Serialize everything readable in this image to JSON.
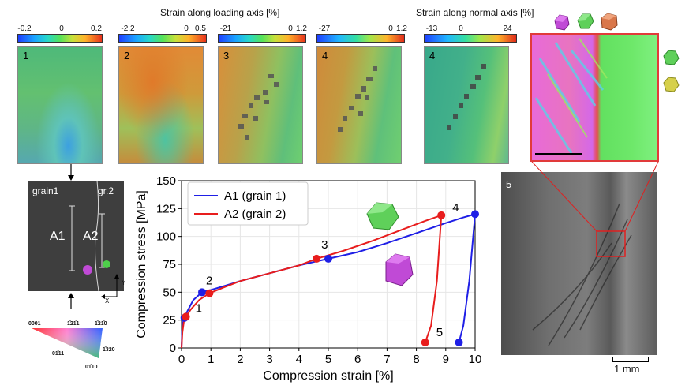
{
  "headers": {
    "loading": "Strain along loading axis [%]",
    "normal": "Strain along normal axis [%]"
  },
  "colorbars": {
    "cb1": [
      "-0.2",
      "0",
      "0.2"
    ],
    "cb2": [
      "-2.2",
      "0",
      "0.5"
    ],
    "cb3": [
      "-21",
      "0",
      "1.2"
    ],
    "cb4": [
      "-27",
      "0",
      "1.2"
    ],
    "cb5": [
      "-13",
      "0",
      "24"
    ]
  },
  "panels": {
    "p1": "1",
    "p2": "2",
    "p3": "3",
    "p4": "4",
    "p5": "4",
    "photo": "5"
  },
  "grain_image": {
    "grain1": "grain1",
    "grain2": "gr.2",
    "a1": "A1",
    "a2": "A2",
    "axis_y": "Y",
    "axis_x": "X"
  },
  "ipf": {
    "l0001": "0001",
    "l1211": "1̄21̄1",
    "l1210": "1̄21̄0",
    "l0111": "01̄11",
    "l1320": "1̄320",
    "l0110": "01̄10"
  },
  "scalebar": "1 mm",
  "chart_data": {
    "type": "line",
    "xlabel": "Compression strain [%]",
    "ylabel": "Compression stress [MPa]",
    "xlim": [
      0,
      10
    ],
    "ylim": [
      0,
      150
    ],
    "xticks": [
      "0",
      "1",
      "2",
      "3",
      "4",
      "5",
      "6",
      "7",
      "8",
      "9",
      "10"
    ],
    "yticks": [
      "0",
      "25",
      "50",
      "75",
      "100",
      "125",
      "150"
    ],
    "legend_position": "top-left",
    "series": [
      {
        "name": "A1 (grain 1)",
        "color": "#1f1fe6",
        "x": [
          0,
          0.02,
          0.05,
          0.1,
          0.2,
          0.4,
          0.7,
          1.0,
          1.5,
          2.0,
          3.0,
          4.0,
          5.0,
          6.0,
          7.0,
          8.0,
          9.0,
          9.6,
          10.0,
          9.8,
          9.6,
          9.45
        ],
        "y": [
          0,
          15,
          23,
          27,
          33,
          43,
          50,
          52,
          56,
          60,
          67,
          74,
          80,
          86,
          94,
          103,
          112,
          117,
          120,
          60,
          20,
          5
        ],
        "markers": [
          {
            "label": "1",
            "x": 0.1,
            "y": 27
          },
          {
            "label": "2",
            "x": 0.7,
            "y": 50
          },
          {
            "label": "3",
            "x": 5.0,
            "y": 80
          },
          {
            "label": "4",
            "x": 10.0,
            "y": 120
          },
          {
            "label": "5",
            "x": 9.45,
            "y": 5
          }
        ]
      },
      {
        "name": "A2 (grain 2)",
        "color": "#e81d1d",
        "x": [
          0,
          0.03,
          0.08,
          0.15,
          0.3,
          0.6,
          0.95,
          1.5,
          2.0,
          3.0,
          4.0,
          4.6,
          5.5,
          6.5,
          7.5,
          8.3,
          8.85,
          8.7,
          8.5,
          8.3
        ],
        "y": [
          0,
          14,
          24,
          28,
          34,
          43,
          49,
          55,
          60,
          67,
          74,
          80,
          87,
          96,
          106,
          114,
          119,
          60,
          20,
          5
        ],
        "markers": [
          {
            "label": "1",
            "x": 0.15,
            "y": 28
          },
          {
            "label": "2",
            "x": 0.95,
            "y": 49
          },
          {
            "label": "3",
            "x": 4.6,
            "y": 80
          },
          {
            "label": "4",
            "x": 8.85,
            "y": 119
          },
          {
            "label": "5",
            "x": 8.3,
            "y": 5
          }
        ]
      }
    ]
  }
}
